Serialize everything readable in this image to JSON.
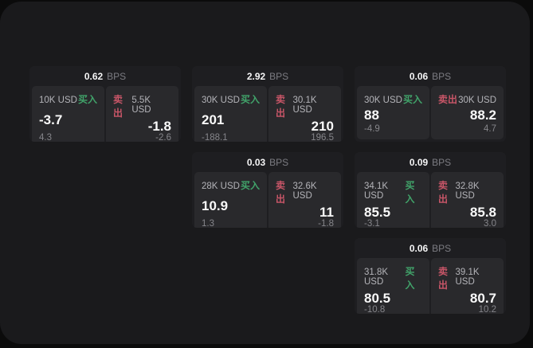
{
  "labels": {
    "bps": "BPS",
    "buy": "买入",
    "sell": "卖出"
  },
  "colors": {
    "buy_green": "#41a36a",
    "sell_red": "#c95668",
    "panel_background": "#1a1a1c",
    "card_background": "#1e1e21",
    "tile_background": "#29292c"
  },
  "cards": [
    {
      "bps": "0.62",
      "buy": {
        "amount": "10K USD",
        "value": "-3.7",
        "sub": "4.3"
      },
      "sell": {
        "amount": "5.5K USD",
        "value": "-1.8",
        "sub": "-2.6"
      }
    },
    {
      "bps": "2.92",
      "buy": {
        "amount": "30K USD",
        "value": "201",
        "sub": "-188.1"
      },
      "sell": {
        "amount": "30.1K USD",
        "value": "210",
        "sub": "196.5"
      }
    },
    {
      "bps": "0.06",
      "buy": {
        "amount": "30K USD",
        "value": "88",
        "sub": "-4.9"
      },
      "sell": {
        "amount": "30K USD",
        "value": "88.2",
        "sub": "4.7"
      }
    },
    {
      "bps": "0.03",
      "buy": {
        "amount": "28K USD",
        "value": "10.9",
        "sub": "1.3"
      },
      "sell": {
        "amount": "32.6K USD",
        "value": "11",
        "sub": "-1.8"
      }
    },
    {
      "bps": "0.09",
      "buy": {
        "amount": "34.1K USD",
        "value": "85.5",
        "sub": "-3.1"
      },
      "sell": {
        "amount": "32.8K USD",
        "value": "85.8",
        "sub": "3.0"
      }
    },
    {
      "bps": "0.06",
      "buy": {
        "amount": "31.8K USD",
        "value": "80.5",
        "sub": "-10.8"
      },
      "sell": {
        "amount": "39.1K USD",
        "value": "80.7",
        "sub": "10.2"
      }
    }
  ]
}
